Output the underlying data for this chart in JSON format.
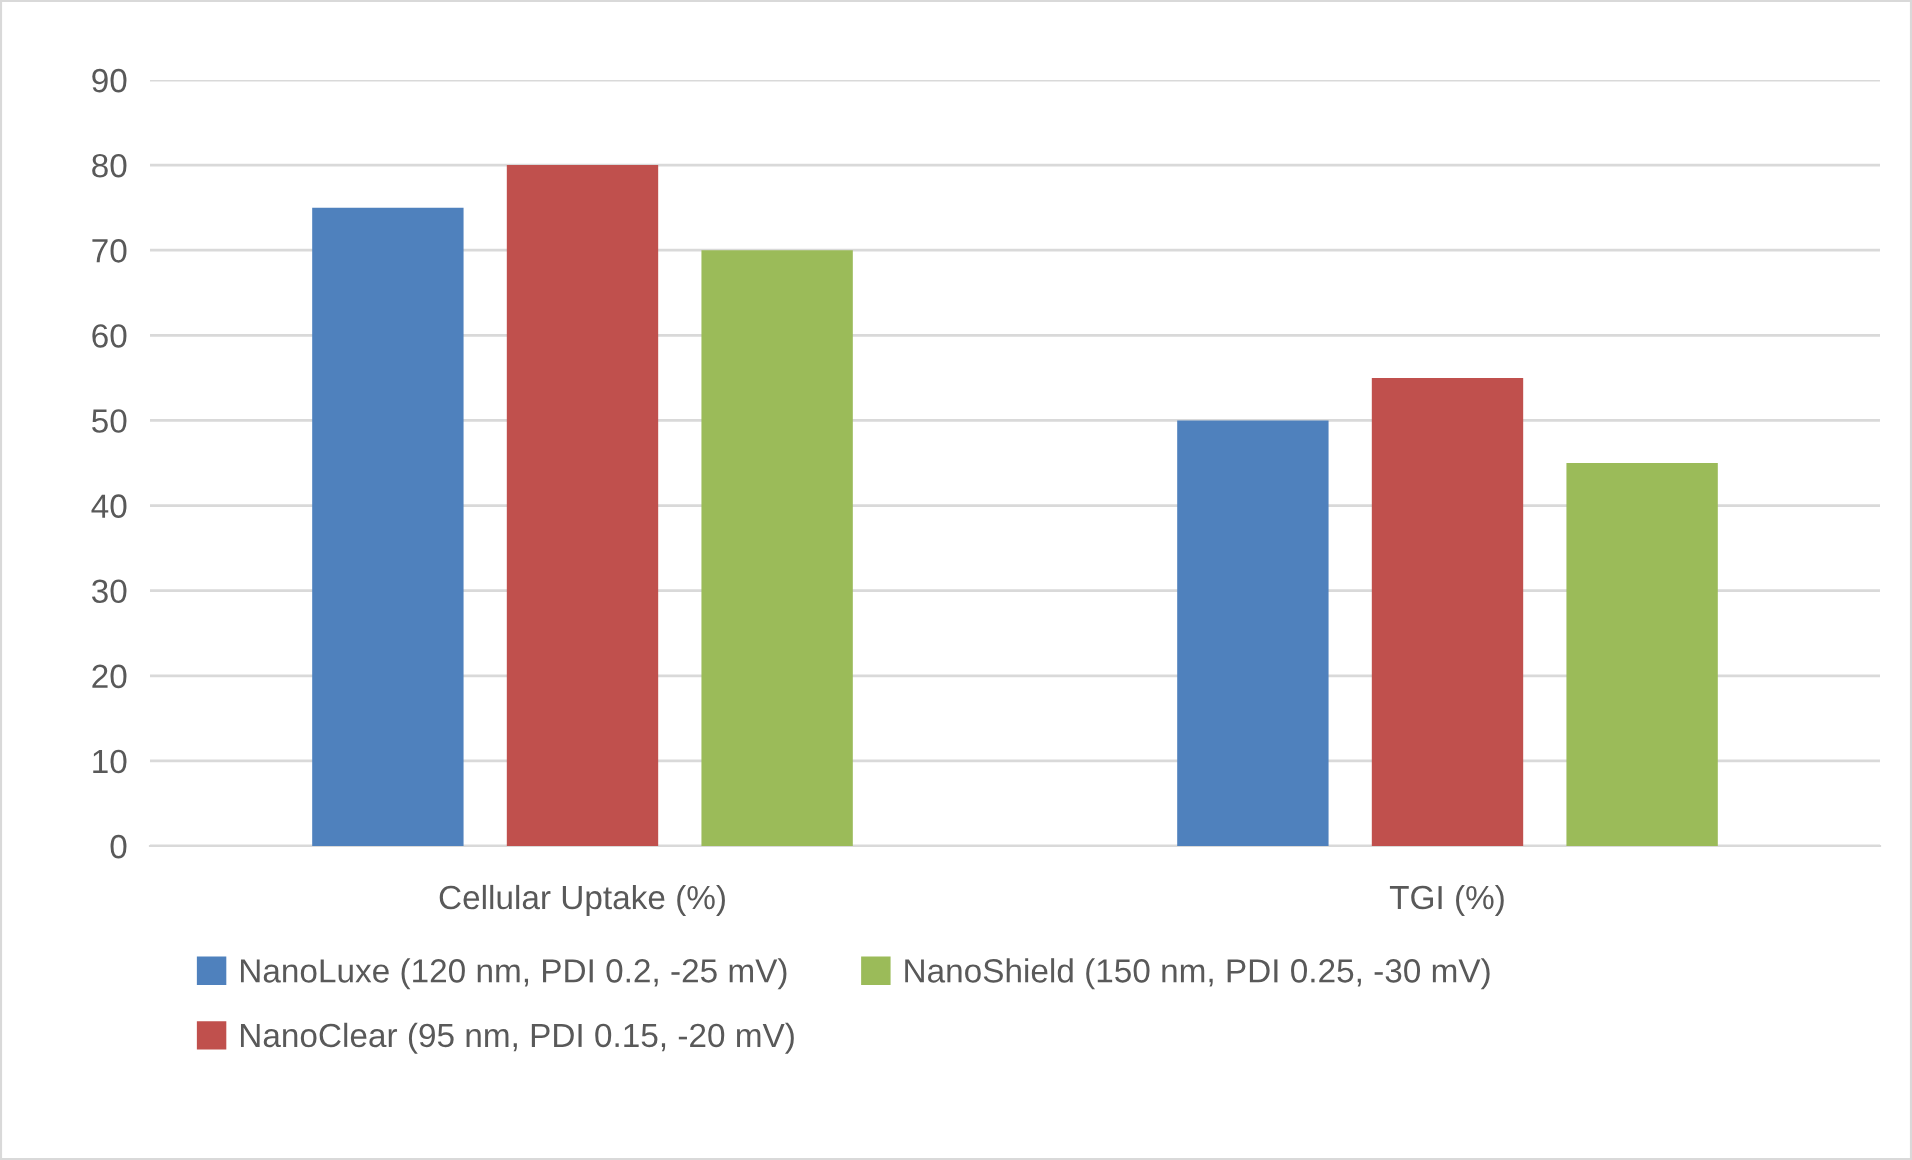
{
  "chart_data": {
    "type": "bar",
    "categories": [
      "Cellular Uptake (%)",
      "TGI (%)"
    ],
    "series": [
      {
        "name": "NanoLuxe (120 nm, PDI 0.2, -25 mV)",
        "color": "#4f81bd",
        "values": [
          75,
          50
        ]
      },
      {
        "name": "NanoClear (95 nm, PDI 0.15, -20 mV)",
        "color": "#c0504d",
        "values": [
          80,
          55
        ]
      },
      {
        "name": "NanoShield (150 nm, PDI 0.25, -30 mV)",
        "color": "#9bbb59",
        "values": [
          70,
          45
        ]
      }
    ],
    "ylim": [
      0,
      90
    ],
    "yticks": [
      0,
      10,
      20,
      30,
      40,
      50,
      60,
      70,
      80,
      90
    ],
    "grid": "y",
    "legend": "bottom"
  }
}
